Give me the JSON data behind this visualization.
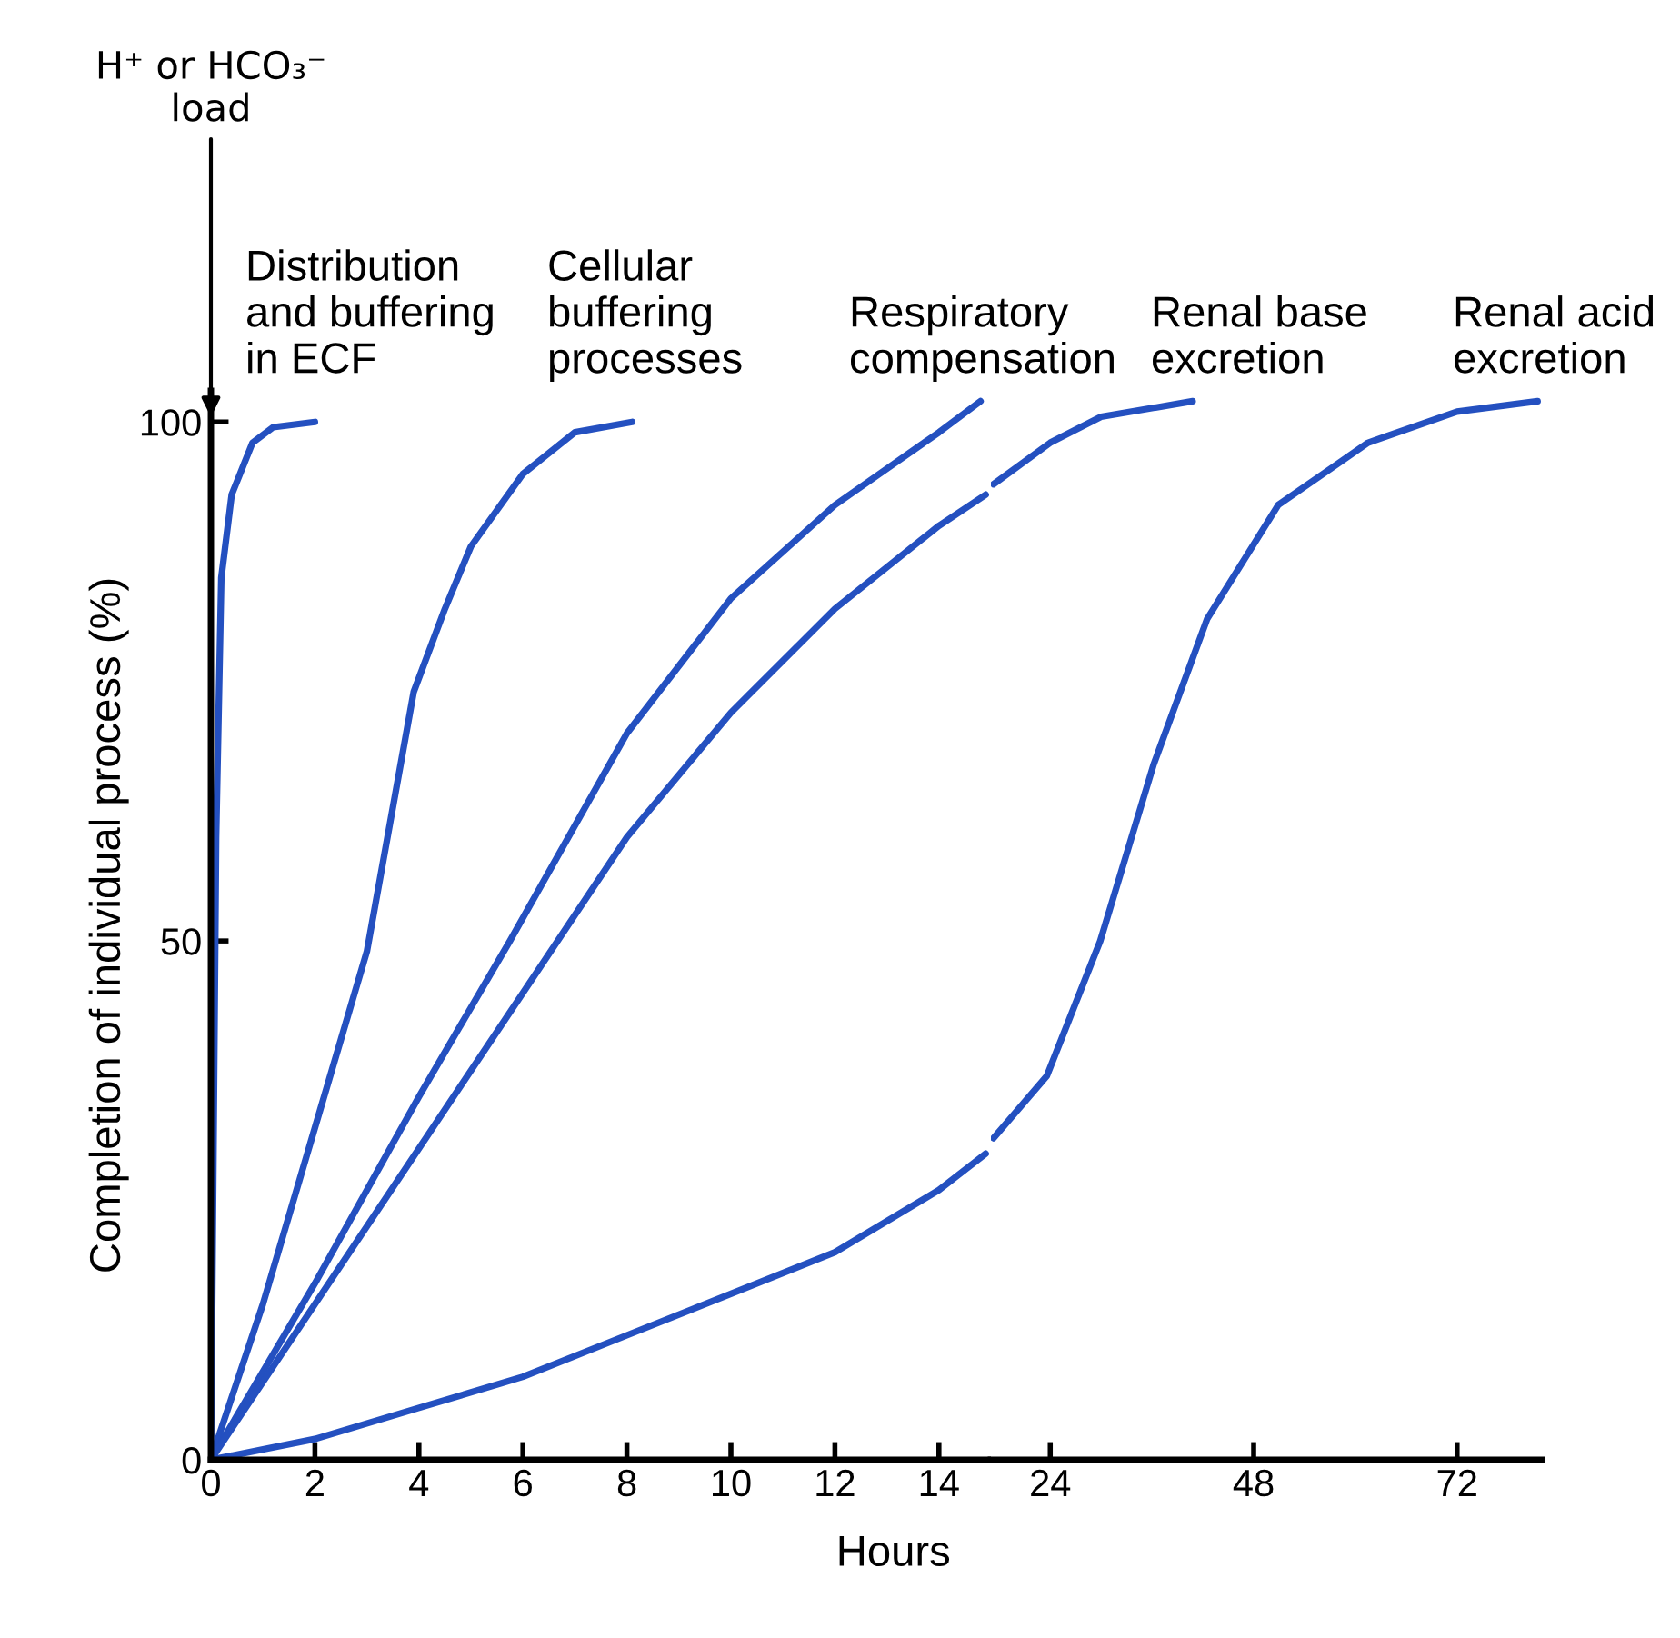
{
  "chart_data": [
    {
      "type": "line",
      "ylabel": "Completion of individual process (%)",
      "xlabel": "Hours",
      "xlim": [
        0,
        15
      ],
      "xticks": [
        0,
        2,
        4,
        6,
        8,
        10,
        12,
        14
      ],
      "ylim": [
        0,
        103
      ],
      "yticks": [
        0,
        50,
        100
      ],
      "grid": false,
      "legend": false,
      "annotations": [
        "H⁺ or HCO₃⁻\nload"
      ],
      "series": [
        {
          "name": "Distribution\nand buffering\nin ECF",
          "color": "#2450c0",
          "x": [
            0,
            0.1,
            0.2,
            0.4,
            0.8,
            1.2,
            2
          ],
          "values": [
            0,
            60,
            85,
            93,
            98,
            99.5,
            100
          ]
        },
        {
          "name": "Cellular\nbuffering\nprocesses",
          "color": "#2450c0",
          "x": [
            0,
            1,
            2,
            3,
            3.9,
            4.5,
            5,
            6,
            7,
            8.1
          ],
          "values": [
            0,
            15,
            32,
            49,
            74,
            82,
            88,
            95,
            99,
            100
          ]
        },
        {
          "name": "Respiratory\ncompensation",
          "color": "#2450c0",
          "x": [
            0,
            2,
            4,
            5.75,
            8,
            10,
            12,
            14,
            14.8
          ],
          "values": [
            0,
            17,
            35,
            50,
            70,
            83,
            92,
            99,
            102
          ]
        },
        {
          "color": "#2450c0",
          "x": [
            0,
            2,
            4,
            6,
            8,
            10,
            12,
            14,
            14.9
          ],
          "values": [
            0,
            15,
            30,
            45,
            60,
            72,
            82,
            90,
            93
          ]
        },
        {
          "color": "#2450c0",
          "x": [
            0,
            2,
            4,
            6,
            8,
            10,
            12,
            14,
            14.9
          ],
          "values": [
            0,
            2,
            5,
            8,
            12,
            16,
            20,
            26,
            29.5
          ]
        }
      ]
    },
    {
      "type": "line",
      "xlim": [
        17,
        82
      ],
      "xticks": [
        24,
        48,
        72
      ],
      "ylim": [
        0,
        103
      ],
      "tick_labels": "x",
      "grid": false,
      "legend": false,
      "series": [
        {
          "name": "Renal base\nexcretion",
          "color": "#2450c0",
          "x": [
            17.3,
            24,
            30,
            40.8
          ],
          "values": [
            94,
            98,
            100.5,
            102
          ]
        },
        {
          "name": "Renal acid\nexcretion",
          "color": "#2450c0",
          "x": [
            17.3,
            23.6,
            29.9,
            36.2,
            42.5,
            50.9,
            61.5,
            72,
            81.5
          ],
          "values": [
            31,
            37,
            50,
            67,
            81,
            92,
            98,
            101,
            102
          ]
        }
      ]
    }
  ]
}
